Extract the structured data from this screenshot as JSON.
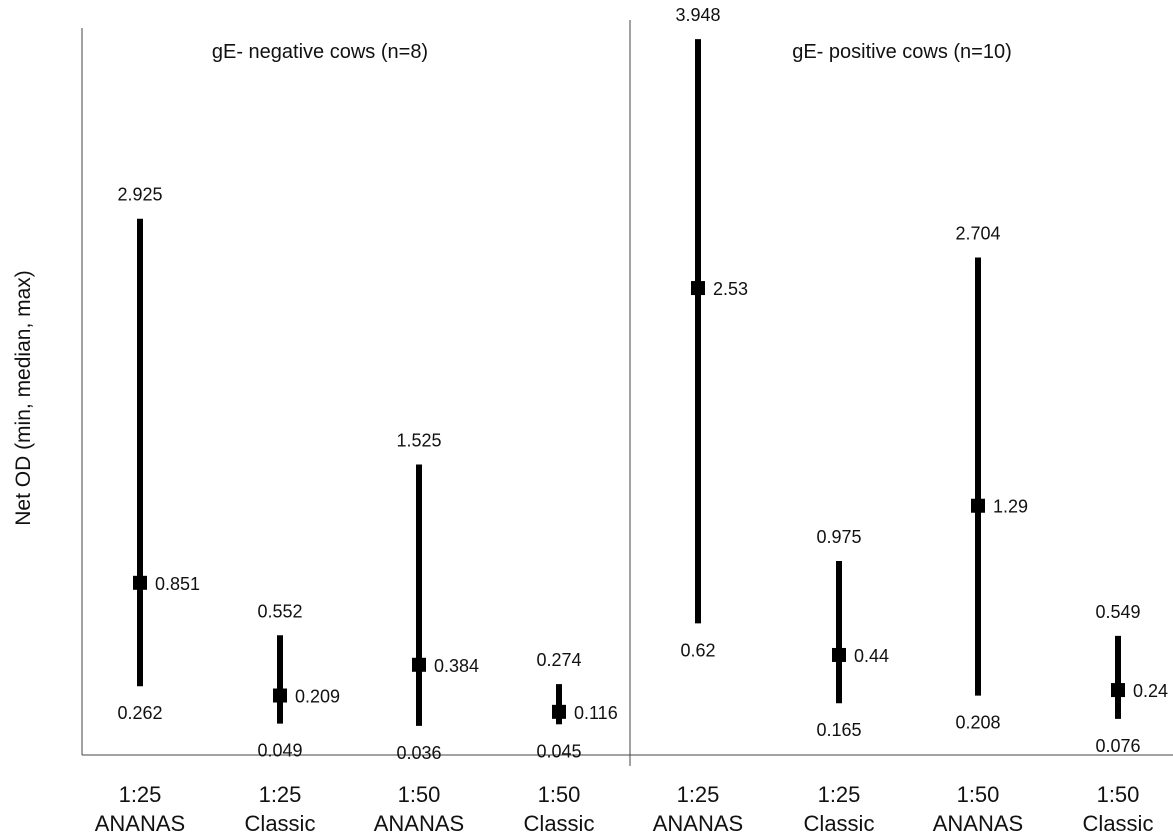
{
  "chart_data": {
    "type": "range",
    "ylabel": "Net OD (min, median, max)",
    "ylim": [
      0,
      4
    ],
    "grid": false,
    "panels": [
      {
        "title": "gE- negative cows (n=8)",
        "groups": [
          {
            "dilution": "1:25",
            "method": "ANANAS",
            "min": 0.262,
            "median": 0.851,
            "max": 2.925,
            "labels": {
              "min": "0.262",
              "median": "0.851",
              "max": "2.925"
            }
          },
          {
            "dilution": "1:25",
            "method": "Classic",
            "min": 0.049,
            "median": 0.209,
            "max": 0.552,
            "labels": {
              "min": "0.049",
              "median": "0.209",
              "max": "0.552"
            }
          },
          {
            "dilution": "1:50",
            "method": "ANANAS",
            "min": 0.036,
            "median": 0.384,
            "max": 1.525,
            "labels": {
              "min": "0.036",
              "median": "0.384",
              "max": "1.525"
            }
          },
          {
            "dilution": "1:50",
            "method": "Classic",
            "min": 0.045,
            "median": 0.116,
            "max": 0.274,
            "labels": {
              "min": "0.045",
              "median": "0.116",
              "max": "0.274"
            }
          }
        ]
      },
      {
        "title": "gE- positive cows (n=10)",
        "groups": [
          {
            "dilution": "1:25",
            "method": "ANANAS",
            "min": 0.62,
            "median": 2.53,
            "max": 3.948,
            "labels": {
              "min": "0.62",
              "median": "2.53",
              "max": "3.948"
            }
          },
          {
            "dilution": "1:25",
            "method": "Classic",
            "min": 0.165,
            "median": 0.44,
            "max": 0.975,
            "labels": {
              "min": "0.165",
              "median": "0.44",
              "max": "0.975"
            }
          },
          {
            "dilution": "1:50",
            "method": "ANANAS",
            "min": 0.208,
            "median": 1.29,
            "max": 2.704,
            "labels": {
              "min": "0.208",
              "median": "1.29",
              "max": "2.704"
            }
          },
          {
            "dilution": "1:50",
            "method": "Classic",
            "min": 0.076,
            "median": 0.24,
            "max": 0.549,
            "labels": {
              "min": "0.076",
              "median": "0.24",
              "max": "0.549"
            }
          }
        ]
      }
    ]
  },
  "colors": {
    "mark": "#000000",
    "axis": "#444444",
    "text": "#111111"
  }
}
